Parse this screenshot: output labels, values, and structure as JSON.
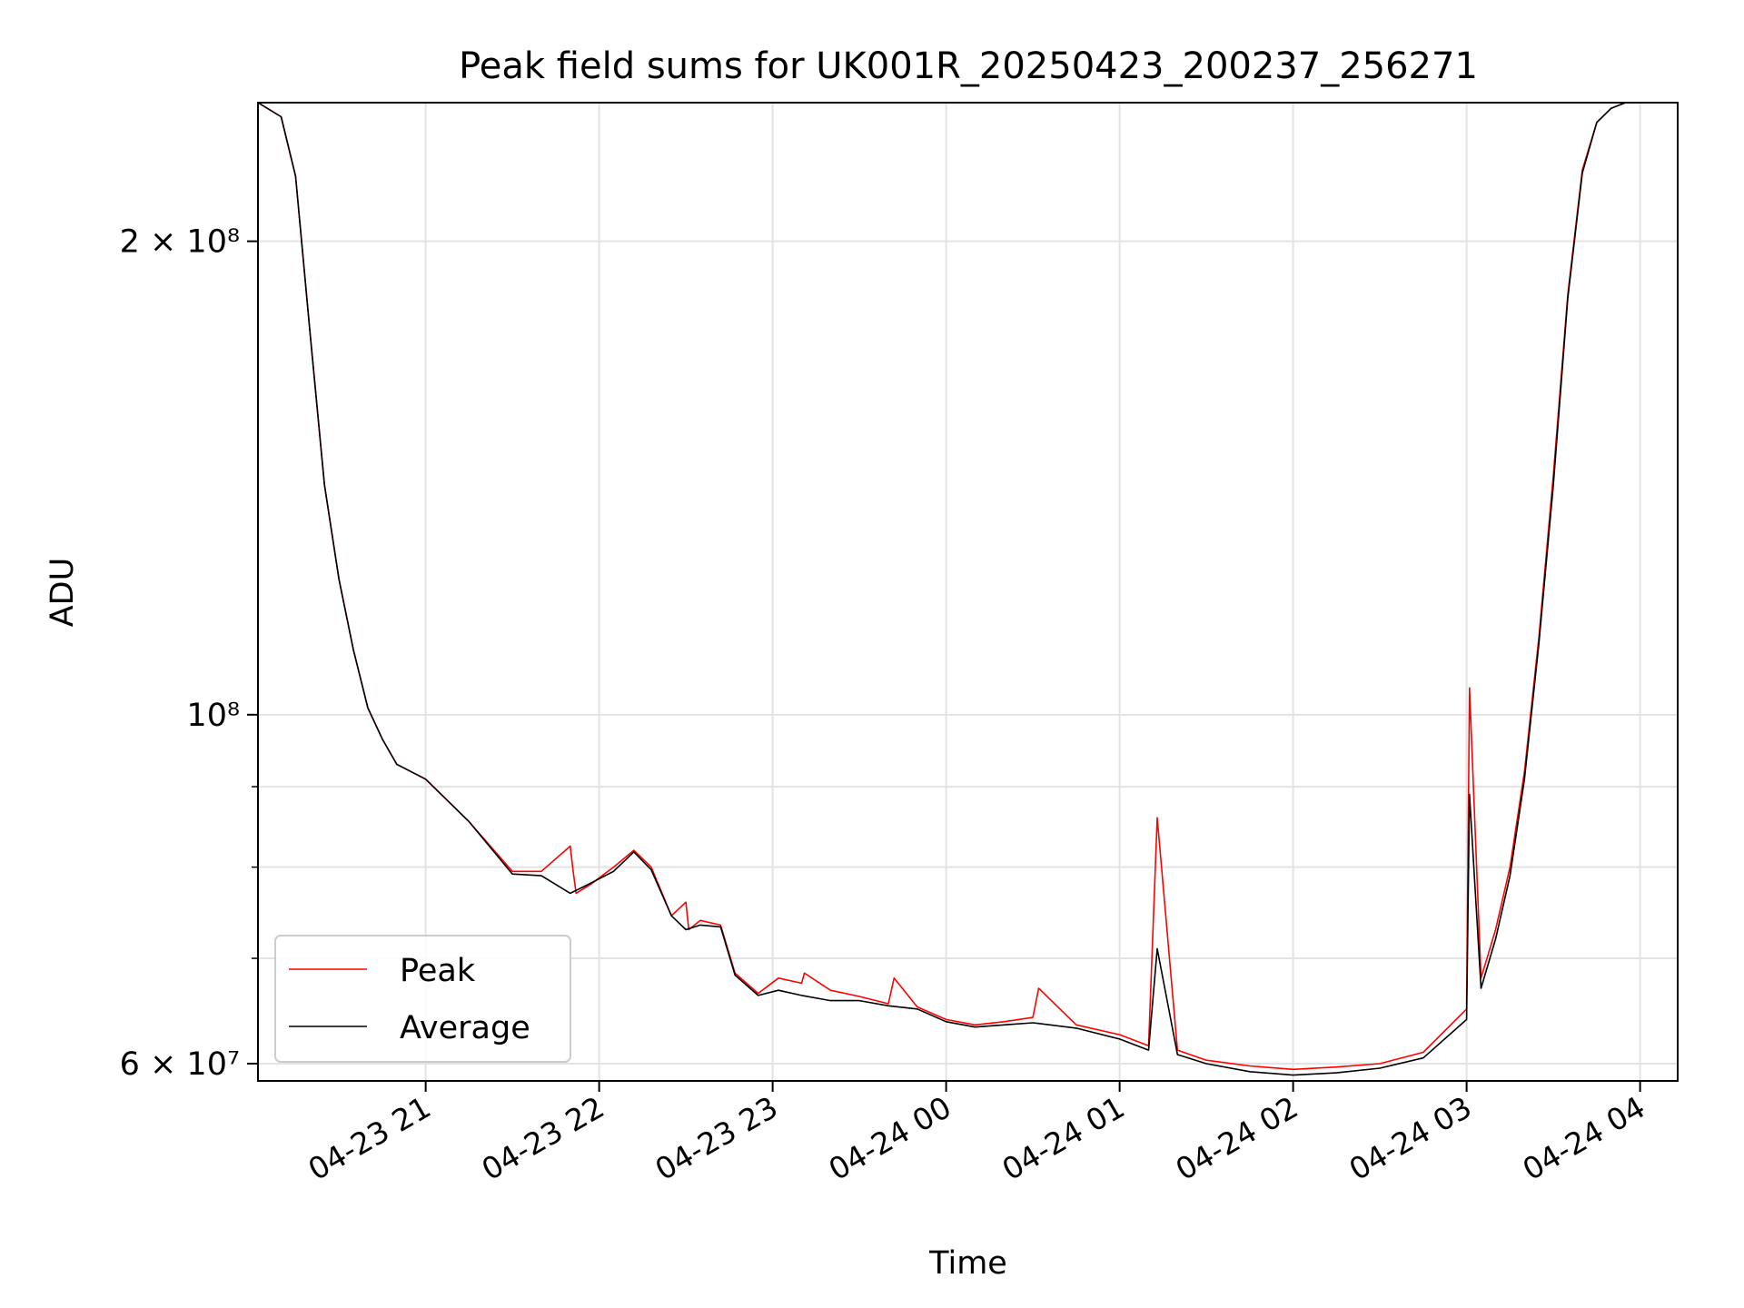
{
  "chart_data": {
    "type": "line",
    "title": "Peak field sums for UK001R_20250423_200237_256271",
    "xlabel": "Time",
    "ylabel": "ADU",
    "yscale": "log",
    "grid": true,
    "legend_position": "lower-left",
    "xlim": [
      "2025-04-23 20:02",
      "2025-04-24 04:13"
    ],
    "ylim": [
      58500000,
      245000000
    ],
    "x_ticks": [
      "04-23 21",
      "04-23 22",
      "04-23 23",
      "04-24 00",
      "04-24 01",
      "04-24 02",
      "04-24 03",
      "04-24 04"
    ],
    "x_tick_times": [
      "2025-04-23 21:00",
      "2025-04-23 22:00",
      "2025-04-23 23:00",
      "2025-04-24 00:00",
      "2025-04-24 01:00",
      "2025-04-24 02:00",
      "2025-04-24 03:00",
      "2025-04-24 04:00"
    ],
    "y_ticks_major": [
      {
        "value": 60000000,
        "label": "6 × 10⁷"
      },
      {
        "value": 100000000,
        "label": "10⁸"
      },
      {
        "value": 200000000,
        "label": "2 × 10⁸"
      }
    ],
    "y_ticks_minor": [
      70000000,
      80000000,
      90000000
    ],
    "series": [
      {
        "name": "Peak",
        "color": "#ff0000",
        "x": [
          "2025-04-23 20:02",
          "2025-04-23 20:10",
          "2025-04-23 20:15",
          "2025-04-23 20:20",
          "2025-04-23 20:25",
          "2025-04-23 20:30",
          "2025-04-23 20:35",
          "2025-04-23 20:40",
          "2025-04-23 20:45",
          "2025-04-23 20:50",
          "2025-04-23 21:00",
          "2025-04-23 21:15",
          "2025-04-23 21:30",
          "2025-04-23 21:40",
          "2025-04-23 21:50",
          "2025-04-23 21:51",
          "2025-04-23 21:52",
          "2025-04-23 21:57",
          "2025-04-23 22:05",
          "2025-04-23 22:12",
          "2025-04-23 22:18",
          "2025-04-23 22:25",
          "2025-04-23 22:30",
          "2025-04-23 22:31",
          "2025-04-23 22:35",
          "2025-04-23 22:42",
          "2025-04-23 22:47",
          "2025-04-23 22:55",
          "2025-04-23 23:02",
          "2025-04-23 23:10",
          "2025-04-23 23:11",
          "2025-04-23 23:20",
          "2025-04-23 23:30",
          "2025-04-23 23:40",
          "2025-04-23 23:42",
          "2025-04-23 23:50",
          "2025-04-24 00:00",
          "2025-04-24 00:10",
          "2025-04-24 00:20",
          "2025-04-24 00:30",
          "2025-04-24 00:32",
          "2025-04-24 00:45",
          "2025-04-24 01:00",
          "2025-04-24 01:10",
          "2025-04-24 01:13",
          "2025-04-24 01:20",
          "2025-04-24 01:30",
          "2025-04-24 01:45",
          "2025-04-24 02:00",
          "2025-04-24 02:15",
          "2025-04-24 02:30",
          "2025-04-24 02:45",
          "2025-04-24 03:00",
          "2025-04-24 03:01",
          "2025-04-24 03:05",
          "2025-04-24 03:10",
          "2025-04-24 03:15",
          "2025-04-24 03:20",
          "2025-04-24 03:25",
          "2025-04-24 03:30",
          "2025-04-24 03:35",
          "2025-04-24 03:40",
          "2025-04-24 03:45",
          "2025-04-24 03:50",
          "2025-04-24 03:55",
          "2025-04-24 04:00"
        ],
        "y": [
          245000000,
          240000000,
          220000000,
          175000000,
          140000000,
          122000000,
          110000000,
          101000000,
          96500000,
          93000000,
          91000000,
          85500000,
          79500000,
          79500000,
          82500000,
          79500000,
          77000000,
          78000000,
          80000000,
          82000000,
          80000000,
          74500000,
          76000000,
          73000000,
          74000000,
          73500000,
          68500000,
          66500000,
          68000000,
          67500000,
          68500000,
          66800000,
          66200000,
          65500000,
          68000000,
          65200000,
          64000000,
          63500000,
          63800000,
          64200000,
          67000000,
          63500000,
          62600000,
          61600000,
          86000000,
          61200000,
          60300000,
          59800000,
          59500000,
          59700000,
          60000000,
          61000000,
          65000000,
          104000000,
          68000000,
          73000000,
          80000000,
          92000000,
          112000000,
          142000000,
          185000000,
          222000000,
          238000000,
          243000000,
          245000000,
          245000000
        ]
      },
      {
        "name": "Average",
        "color": "#000000",
        "x": [
          "2025-04-23 20:02",
          "2025-04-23 20:10",
          "2025-04-23 20:15",
          "2025-04-23 20:20",
          "2025-04-23 20:25",
          "2025-04-23 20:30",
          "2025-04-23 20:35",
          "2025-04-23 20:40",
          "2025-04-23 20:45",
          "2025-04-23 20:50",
          "2025-04-23 21:00",
          "2025-04-23 21:15",
          "2025-04-23 21:30",
          "2025-04-23 21:40",
          "2025-04-23 21:50",
          "2025-04-23 21:55",
          "2025-04-23 22:05",
          "2025-04-23 22:12",
          "2025-04-23 22:18",
          "2025-04-23 22:25",
          "2025-04-23 22:30",
          "2025-04-23 22:35",
          "2025-04-23 22:42",
          "2025-04-23 22:47",
          "2025-04-23 22:55",
          "2025-04-23 23:02",
          "2025-04-23 23:10",
          "2025-04-23 23:20",
          "2025-04-23 23:30",
          "2025-04-23 23:40",
          "2025-04-23 23:50",
          "2025-04-24 00:00",
          "2025-04-24 00:10",
          "2025-04-24 00:20",
          "2025-04-24 00:30",
          "2025-04-24 00:45",
          "2025-04-24 01:00",
          "2025-04-24 01:10",
          "2025-04-24 01:13",
          "2025-04-24 01:20",
          "2025-04-24 01:30",
          "2025-04-24 01:45",
          "2025-04-24 02:00",
          "2025-04-24 02:15",
          "2025-04-24 02:30",
          "2025-04-24 02:45",
          "2025-04-24 03:00",
          "2025-04-24 03:01",
          "2025-04-24 03:05",
          "2025-04-24 03:10",
          "2025-04-24 03:15",
          "2025-04-24 03:20",
          "2025-04-24 03:25",
          "2025-04-24 03:30",
          "2025-04-24 03:35",
          "2025-04-24 03:40",
          "2025-04-24 03:45",
          "2025-04-24 03:50",
          "2025-04-24 03:55",
          "2025-04-24 04:00"
        ],
        "y": [
          245000000,
          240000000,
          220000000,
          175000000,
          140000000,
          122000000,
          110000000,
          101000000,
          96500000,
          93000000,
          91000000,
          85500000,
          79200000,
          79000000,
          77000000,
          77800000,
          79500000,
          81800000,
          79700000,
          74500000,
          73000000,
          73500000,
          73300000,
          68300000,
          66300000,
          66800000,
          66300000,
          65800000,
          65800000,
          65300000,
          65000000,
          63800000,
          63300000,
          63500000,
          63700000,
          63200000,
          62200000,
          61200000,
          71000000,
          60800000,
          60000000,
          59300000,
          59000000,
          59200000,
          59600000,
          60500000,
          64000000,
          89000000,
          67000000,
          72000000,
          79000000,
          91000000,
          111000000,
          140000000,
          184000000,
          221000000,
          238000000,
          243000000,
          245000000,
          245000000
        ]
      }
    ]
  }
}
